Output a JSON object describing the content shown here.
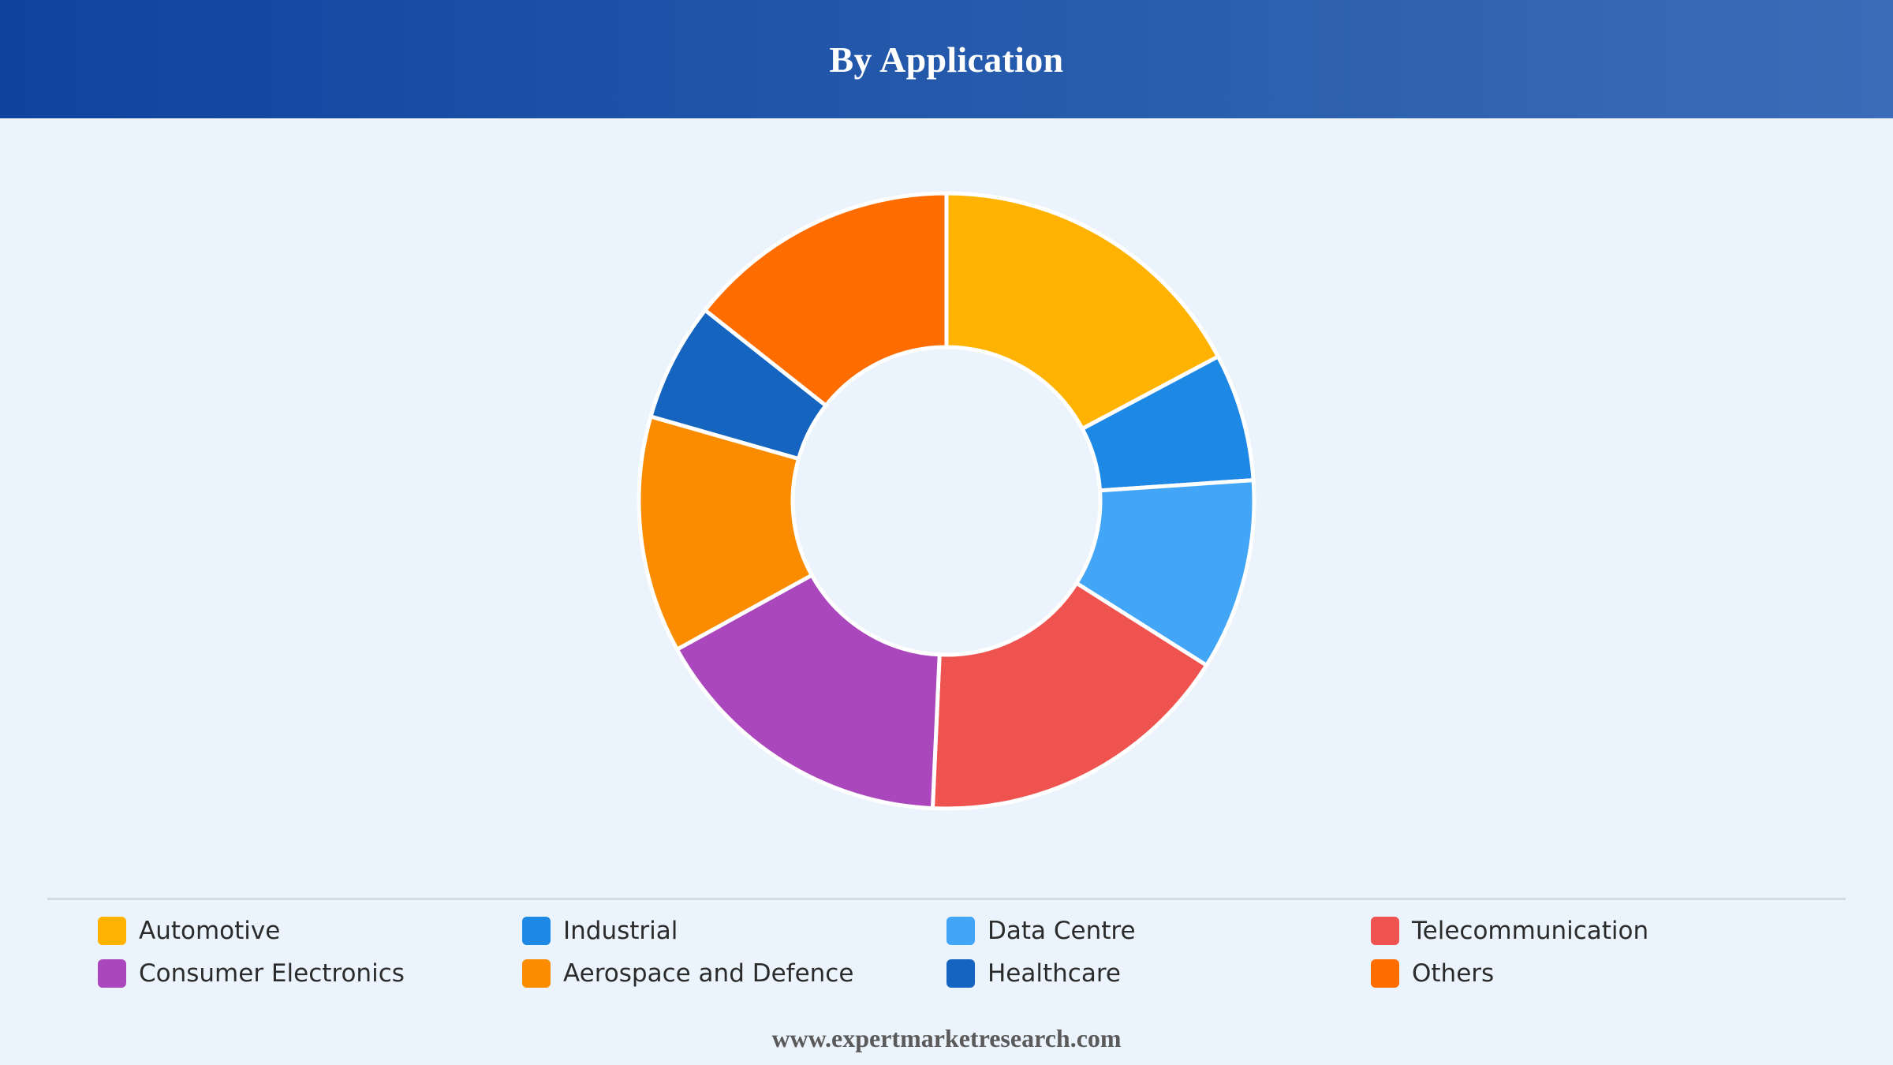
{
  "header": {
    "title": "By Application"
  },
  "chart_data": {
    "type": "pie",
    "variant": "donut",
    "title": "By Application",
    "legend_position": "bottom",
    "categories": [
      "Automotive",
      "Industrial",
      "Data Centre",
      "Telecommunication",
      "Consumer Electronics",
      "Aerospace and Defence",
      "Healthcare",
      "Others"
    ],
    "values": [
      18,
      7,
      10.5,
      17.5,
      17,
      13,
      6.5,
      15
    ],
    "colors": [
      "#ffb300",
      "#1e88e5",
      "#42a5f5",
      "#ef5350",
      "#ab47bc",
      "#fb8c00",
      "#1565c0",
      "#ff6d00"
    ]
  },
  "legend": {
    "items": [
      {
        "label": "Automotive",
        "color": "#ffb300"
      },
      {
        "label": "Industrial",
        "color": "#1e88e5"
      },
      {
        "label": "Data Centre",
        "color": "#42a5f5"
      },
      {
        "label": "Telecommunication",
        "color": "#ef5350"
      },
      {
        "label": "Consumer Electronics",
        "color": "#ab47bc"
      },
      {
        "label": "Aerospace and Defence",
        "color": "#fb8c00"
      },
      {
        "label": "Healthcare",
        "color": "#1565c0"
      },
      {
        "label": "Others",
        "color": "#ff6d00"
      }
    ]
  },
  "footer": {
    "source": "www.expertmarketresearch.com"
  }
}
